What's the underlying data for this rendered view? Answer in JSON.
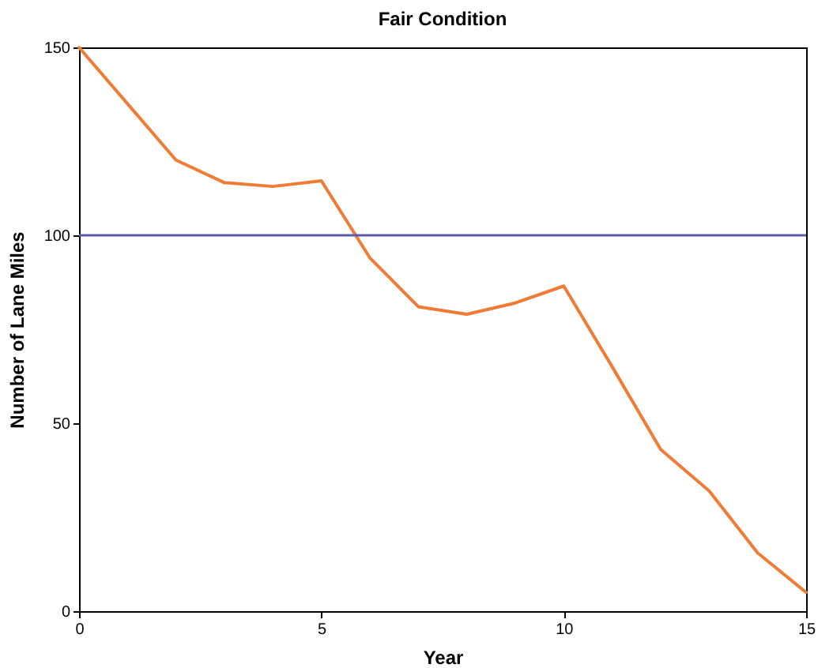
{
  "chart_data": {
    "type": "line",
    "title": "Fair Condition",
    "xlabel": "Year",
    "ylabel": "Number of Lane Miles",
    "x": [
      0,
      1,
      2,
      3,
      4,
      5,
      6,
      7,
      8,
      9,
      10,
      11,
      12,
      13,
      14,
      15
    ],
    "series": [
      {
        "color": "#f07b35",
        "values": [
          150,
          135,
          120,
          114,
          113,
          114.5,
          94,
          81,
          79,
          82,
          86.5,
          65,
          43,
          32,
          15.5,
          5
        ]
      }
    ],
    "xlim": [
      0,
      15
    ],
    "xticks": [
      0,
      5,
      10,
      15
    ],
    "ylim": [
      0,
      150
    ],
    "yticks": [
      0,
      50,
      100,
      150
    ],
    "ref_lines": [
      {
        "axis": "y",
        "value": 100,
        "color": "#5b5ba8"
      }
    ],
    "grid": false,
    "line_style": "solid",
    "marker": "none"
  }
}
